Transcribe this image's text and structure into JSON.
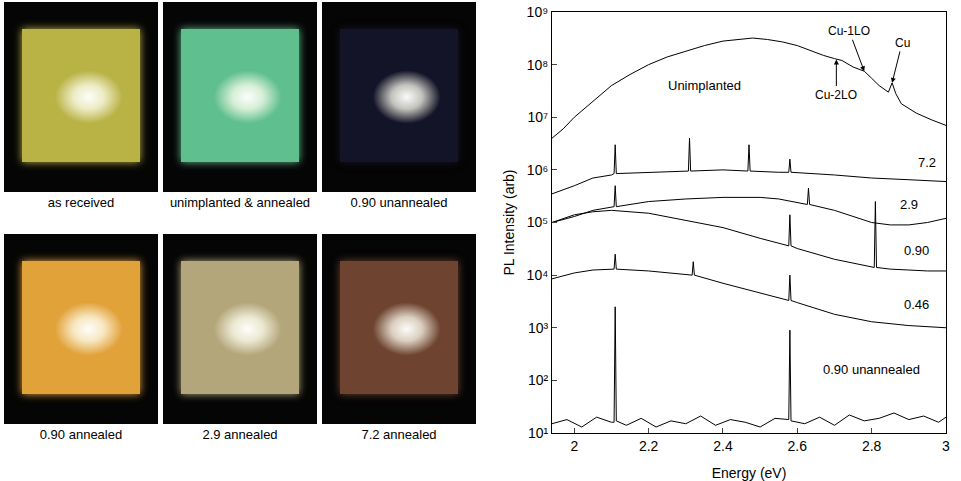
{
  "photos": [
    {
      "label": "as received",
      "color": "#b9b244"
    },
    {
      "label": "unimplanted & annealed",
      "color": "#5fbf8e"
    },
    {
      "label": "0.90 unannealed",
      "color": "#141428"
    },
    {
      "label": "0.90 annealed",
      "color": "#e2a23a"
    },
    {
      "label": "2.9 annealed",
      "color": "#b3a67a"
    },
    {
      "label": "7.2 annealed",
      "color": "#6e4330"
    }
  ],
  "chart_data": {
    "type": "line",
    "x_label": "Energy (eV)",
    "y_label": "PL Intensity (arb)",
    "log": "y",
    "grid": false,
    "color": "#000000",
    "xlim": [
      1.94,
      3.0
    ],
    "xticks": [
      2,
      2.2,
      2.4,
      2.6,
      2.8,
      3
    ],
    "ylim": [
      10,
      1000000000
    ],
    "yticks": [
      {
        "value": 10,
        "label": "10¹"
      },
      {
        "value": 100,
        "label": "10²"
      },
      {
        "value": 1000,
        "label": "10³"
      },
      {
        "value": 10000,
        "label": "10⁴"
      },
      {
        "value": 100000,
        "label": "10⁵"
      },
      {
        "value": 1000000,
        "label": "10⁶"
      },
      {
        "value": 10000000,
        "label": "10⁷"
      },
      {
        "value": 100000000,
        "label": "10⁸"
      },
      {
        "value": 1000000000,
        "label": "10⁹"
      }
    ],
    "series": [
      {
        "x": [
          1.94,
          1.97,
          2.0,
          2.05,
          2.1,
          2.15,
          2.2,
          2.25,
          2.3,
          2.35,
          2.4,
          2.45,
          2.48,
          2.52,
          2.56,
          2.6,
          2.64,
          2.67,
          2.7,
          2.72,
          2.75,
          2.78,
          2.8,
          2.82,
          2.845,
          2.855,
          2.865,
          2.88,
          2.92,
          2.96,
          3.0
        ],
        "values": [
          4000000,
          6000000,
          10000000,
          20000000,
          40000000,
          65000000,
          100000000,
          140000000,
          180000000,
          230000000,
          280000000,
          310000000,
          320000000,
          300000000,
          270000000,
          230000000,
          180000000,
          150000000,
          130000000,
          120000000,
          90000000,
          75000000,
          55000000,
          40000000,
          30000000,
          45000000,
          28000000,
          18000000,
          12000000,
          9000000,
          7000000
        ]
      },
      {
        "x": [
          1.94,
          2.0,
          2.05,
          2.1,
          2.107,
          2.11,
          2.113,
          2.2,
          2.3,
          2.307,
          2.31,
          2.313,
          2.4,
          2.467,
          2.47,
          2.473,
          2.55,
          2.577,
          2.58,
          2.583,
          2.7,
          2.8,
          2.9,
          3.0
        ],
        "values": [
          350000,
          500000,
          700000,
          800000,
          850000,
          3000000,
          850000,
          900000,
          950000,
          950000,
          4000000,
          950000,
          1000000,
          950000,
          3000000,
          950000,
          900000,
          900000,
          1600000,
          900000,
          800000,
          700000,
          650000,
          600000
        ]
      },
      {
        "x": [
          1.94,
          2.0,
          2.05,
          2.1,
          2.107,
          2.11,
          2.113,
          2.2,
          2.3,
          2.4,
          2.5,
          2.55,
          2.6,
          2.627,
          2.63,
          2.633,
          2.7,
          2.75,
          2.8,
          2.85,
          2.9,
          2.95,
          3.0
        ],
        "values": [
          100000,
          130000,
          170000,
          200000,
          200000,
          500000,
          200000,
          250000,
          280000,
          300000,
          300000,
          280000,
          240000,
          220000,
          450000,
          220000,
          170000,
          130000,
          100000,
          90000,
          90000,
          100000,
          120000
        ]
      },
      {
        "x": [
          1.94,
          2.0,
          2.05,
          2.1,
          2.2,
          2.3,
          2.4,
          2.5,
          2.577,
          2.58,
          2.583,
          2.6,
          2.7,
          2.807,
          2.81,
          2.813,
          2.85,
          2.9,
          2.95,
          3.0
        ],
        "values": [
          100000,
          140000,
          160000,
          170000,
          150000,
          110000,
          80000,
          50000,
          36000,
          140000,
          36000,
          32000,
          20000,
          14000,
          250000,
          14000,
          13000,
          12500,
          12000,
          12000
        ]
      },
      {
        "x": [
          1.94,
          2.0,
          2.05,
          2.1,
          2.107,
          2.11,
          2.113,
          2.2,
          2.3,
          2.317,
          2.32,
          2.323,
          2.4,
          2.5,
          2.577,
          2.58,
          2.583,
          2.6,
          2.7,
          2.8,
          2.9,
          3.0
        ],
        "values": [
          8500,
          11000,
          12500,
          13000,
          13000,
          25000,
          13000,
          12000,
          10000,
          10000,
          18000,
          10000,
          7000,
          4600,
          3300,
          10000,
          3300,
          3000,
          1800,
          1300,
          1100,
          1000
        ]
      },
      {
        "x": [
          1.94,
          1.98,
          2.02,
          2.06,
          2.1,
          2.107,
          2.11,
          2.113,
          2.14,
          2.18,
          2.22,
          2.26,
          2.3,
          2.34,
          2.38,
          2.42,
          2.46,
          2.5,
          2.54,
          2.577,
          2.58,
          2.583,
          2.62,
          2.66,
          2.7,
          2.74,
          2.78,
          2.82,
          2.86,
          2.9,
          2.94,
          2.98,
          3.0
        ],
        "values": [
          15,
          18,
          13,
          20,
          16,
          16,
          2500,
          17,
          14,
          19,
          13,
          17,
          15,
          21,
          14,
          18,
          16,
          13,
          19,
          18,
          900,
          17,
          15,
          20,
          14,
          22,
          17,
          19,
          24,
          18,
          21,
          16,
          20
        ]
      }
    ],
    "annotations": [
      {
        "text": "Unimplanted",
        "x": 2.35,
        "y": 40000000
      },
      {
        "text": "7.2",
        "x": 2.95,
        "y": 1400000
      },
      {
        "text": "2.9",
        "x": 2.9,
        "y": 220000
      },
      {
        "text": "0.90",
        "x": 2.92,
        "y": 30000
      },
      {
        "text": "0.46",
        "x": 2.92,
        "y": 2800
      },
      {
        "text": "0.90 unannealed",
        "x": 2.8,
        "y": 160
      }
    ],
    "arrows": [
      {
        "text": "Cu-2LO",
        "x": 2.705,
        "y": 125000000
      },
      {
        "text": "Cu-1LO",
        "x": 2.78,
        "y": 75000000
      },
      {
        "text": "Cu",
        "x": 2.855,
        "y": 45000000
      }
    ]
  }
}
